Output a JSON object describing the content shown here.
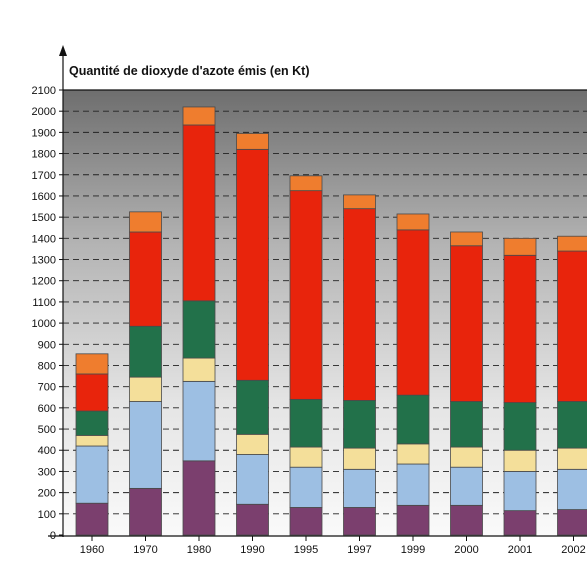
{
  "chart_data": {
    "type": "bar",
    "stacked": true,
    "title": "",
    "ylabel": "Quantité de dioxyde d'azote émis (en Kt)",
    "xlabel": "",
    "ylim": [
      0,
      2100
    ],
    "yticks": [
      0,
      100,
      200,
      300,
      400,
      500,
      600,
      700,
      800,
      900,
      1000,
      1100,
      1200,
      1300,
      1400,
      1500,
      1600,
      1700,
      1800,
      1900,
      2000,
      2100
    ],
    "grid": true,
    "legend": "none",
    "categories": [
      "1960",
      "1970",
      "1980",
      "1990",
      "1995",
      "1997",
      "1999",
      "2000",
      "2001",
      "2002"
    ],
    "series": [
      {
        "color": "#7b3f6e",
        "values": [
          150,
          220,
          350,
          145,
          130,
          130,
          140,
          140,
          115,
          120
        ]
      },
      {
        "color": "#9dbfe3",
        "values": [
          270,
          410,
          375,
          235,
          190,
          180,
          195,
          180,
          185,
          190
        ]
      },
      {
        "color": "#f4df9a",
        "values": [
          50,
          115,
          110,
          95,
          95,
          100,
          95,
          95,
          100,
          100
        ]
      },
      {
        "color": "#22714a",
        "values": [
          115,
          240,
          270,
          255,
          225,
          225,
          230,
          215,
          225,
          220
        ]
      },
      {
        "color": "#e8240c",
        "values": [
          175,
          445,
          830,
          1090,
          985,
          905,
          780,
          735,
          695,
          710
        ]
      },
      {
        "color": "#ef7d2e",
        "values": [
          95,
          95,
          85,
          75,
          70,
          65,
          75,
          65,
          80,
          70
        ]
      }
    ]
  }
}
